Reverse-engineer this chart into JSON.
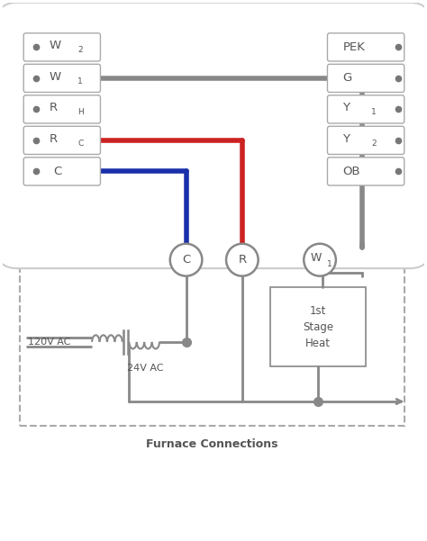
{
  "bg_color": "#ffffff",
  "wire_gray": "#888888",
  "wire_red": "#cc2222",
  "wire_blue": "#1a2faa",
  "text_color": "#555555",
  "left_terminals": [
    "W2",
    "W1",
    "RH",
    "RC",
    "C"
  ],
  "right_terminals": [
    "PEK",
    "G",
    "Y1",
    "Y2",
    "OB"
  ],
  "furnace_label": "Furnace Connections",
  "lw_wire": 4.0,
  "lw_furnace": 2.0,
  "lw_thin": 1.5,
  "terminal_ec": "#aaaaaa",
  "dot_color": "#777777",
  "circ_ec": "#888888"
}
